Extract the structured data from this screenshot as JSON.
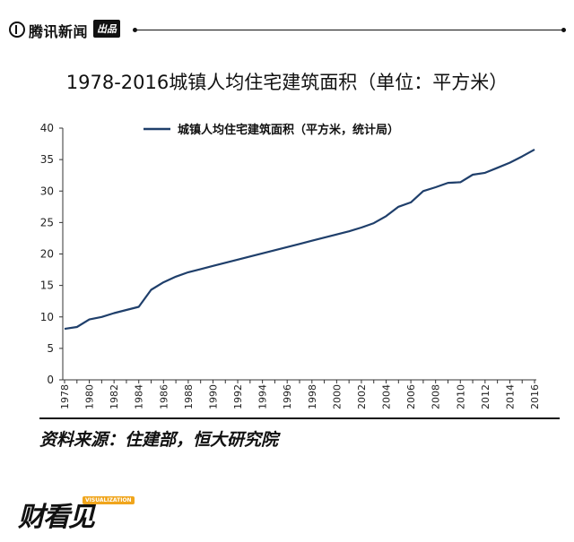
{
  "header": {
    "brand": "腾讯新闻",
    "badge": "出品"
  },
  "title": "1978-2016城镇人均住宅建筑面积（单位：平方米）",
  "source": "资料来源：住建部，恒大研究院",
  "footer": {
    "logo_text": "财看见",
    "logo_tag": "VISUALIZATION"
  },
  "colors": {
    "line": "#1f3f6b",
    "axis": "#333333"
  },
  "chart_data": {
    "type": "line",
    "title": "1978-2016城镇人均住宅建筑面积（单位：平方米）",
    "xlabel": "",
    "ylabel": "",
    "ylim": [
      0,
      40
    ],
    "yticks": [
      "0",
      "5",
      "10",
      "15",
      "20",
      "25",
      "30",
      "35",
      "40"
    ],
    "xticks": [
      "1978",
      "1980",
      "1982",
      "1984",
      "1986",
      "1988",
      "1990",
      "1992",
      "1994",
      "1996",
      "1998",
      "2000",
      "2002",
      "2004",
      "2006",
      "2008",
      "2010",
      "2012",
      "2014",
      "2016"
    ],
    "legend": "top-center",
    "grid": false,
    "series": [
      {
        "name": "城镇人均住宅建筑面积（平方米，统计局）",
        "x": [
          1978,
          1979,
          1980,
          1981,
          1982,
          1983,
          1984,
          1985,
          1986,
          1987,
          1988,
          1989,
          1990,
          1991,
          1992,
          1993,
          1994,
          1995,
          1996,
          1997,
          1998,
          1999,
          2000,
          2001,
          2002,
          2003,
          2004,
          2005,
          2006,
          2007,
          2008,
          2009,
          2010,
          2011,
          2012,
          2013,
          2014,
          2015,
          2016
        ],
        "values": [
          8.1,
          8.4,
          9.6,
          10.0,
          10.6,
          11.1,
          11.6,
          14.3,
          15.5,
          16.4,
          17.1,
          17.6,
          18.1,
          18.6,
          19.1,
          19.6,
          20.1,
          20.6,
          21.1,
          21.6,
          22.1,
          22.6,
          23.1,
          23.6,
          24.2,
          24.9,
          26.0,
          27.5,
          28.2,
          30.0,
          30.6,
          31.3,
          31.4,
          32.6,
          32.9,
          33.7,
          34.5,
          35.5,
          36.6
        ]
      }
    ]
  }
}
